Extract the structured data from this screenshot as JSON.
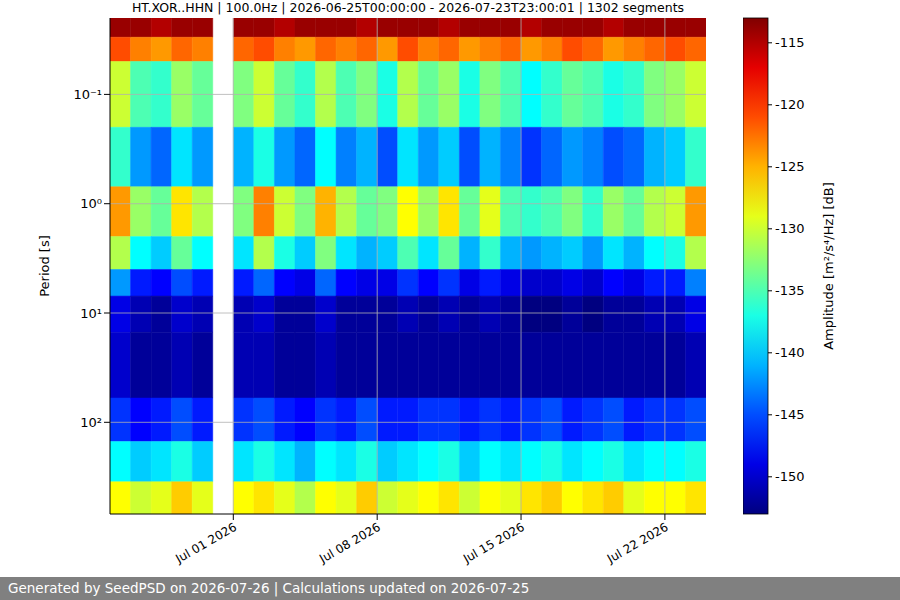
{
  "chart_data": {
    "type": "heatmap",
    "title": "HT.XOR..HHN | 100.0Hz | 2026-06-25T00:00:00 - 2026-07-23T23:00:01 | 1302 segments",
    "footer": "Generated by SeedPSD on 2026-07-26 | Calculations updated on 2026-07-25",
    "y_label": "Period [s]",
    "log": "y",
    "grid": true,
    "xlim": [
      "2026-06-25",
      "2026-07-24"
    ],
    "xticks": [
      {
        "value": "2026-07-01",
        "label": "Jul 01 2026"
      },
      {
        "value": "2026-07-08",
        "label": "Jul 08 2026"
      },
      {
        "value": "2026-07-15",
        "label": "Jul 15 2026"
      },
      {
        "value": "2026-07-22",
        "label": "Jul 22 2026"
      }
    ],
    "ylim": [
      0.02,
      690
    ],
    "yticks": [
      {
        "value": 0.1,
        "label": "10⁻¹"
      },
      {
        "value": 1,
        "label": "10⁰"
      },
      {
        "value": 10,
        "label": "10¹"
      },
      {
        "value": 100,
        "label": "10²"
      }
    ],
    "cells": {
      "x_edges": [
        "2026-06-25",
        "2026-06-26",
        "2026-06-27",
        "2026-06-28",
        "2026-06-29",
        "2026-06-30",
        "2026-07-01",
        "2026-07-02",
        "2026-07-03",
        "2026-07-04",
        "2026-07-05",
        "2026-07-06",
        "2026-07-07",
        "2026-07-08",
        "2026-07-09",
        "2026-07-10",
        "2026-07-11",
        "2026-07-12",
        "2026-07-13",
        "2026-07-14",
        "2026-07-15",
        "2026-07-16",
        "2026-07-17",
        "2026-07-18",
        "2026-07-19",
        "2026-07-20",
        "2026-07-21",
        "2026-07-22",
        "2026-07-23",
        "2026-07-24"
      ],
      "y_edges": [
        0.02,
        0.03,
        0.05,
        0.2,
        0.7,
        2,
        4,
        7,
        15,
        60,
        150,
        350,
        690
      ],
      "values": [
        [
          -114,
          -114,
          -115,
          -114,
          -114,
          null,
          -114,
          -114,
          -115,
          -114,
          -114,
          -114,
          -115,
          -114,
          -114,
          -114,
          -115,
          -114,
          -114,
          -114,
          -115,
          -114,
          -114,
          -114,
          -115,
          -114,
          -114,
          -114,
          -114
        ],
        [
          -121,
          -123,
          -124,
          -122,
          -123,
          null,
          -122,
          -121,
          -123,
          -124,
          -122,
          -123,
          -122,
          -124,
          -121,
          -123,
          -122,
          -124,
          -123,
          -122,
          -124,
          -123,
          -121,
          -122,
          -124,
          -123,
          -122,
          -121,
          -122
        ],
        [
          -130,
          -135,
          -136,
          -132,
          -134,
          null,
          -133,
          -130,
          -134,
          -136,
          -131,
          -135,
          -133,
          -137,
          -131,
          -134,
          -132,
          -137,
          -133,
          -135,
          -138,
          -136,
          -134,
          -135,
          -137,
          -136,
          -133,
          -132,
          -130
        ],
        [
          -136,
          -142,
          -144,
          -139,
          -142,
          null,
          -141,
          -137,
          -142,
          -144,
          -138,
          -143,
          -141,
          -145,
          -139,
          -142,
          -140,
          -145,
          -141,
          -143,
          -146,
          -144,
          -142,
          -143,
          -145,
          -144,
          -141,
          -140,
          -136
        ],
        [
          -124,
          -132,
          -134,
          -127,
          -131,
          null,
          -133,
          -123,
          -130,
          -133,
          -125,
          -131,
          -134,
          -133,
          -128,
          -132,
          -127,
          -134,
          -129,
          -135,
          -136,
          -135,
          -133,
          -136,
          -132,
          -134,
          -131,
          -130,
          -124
        ],
        [
          -131,
          -138,
          -140,
          -134,
          -138,
          null,
          -139,
          -131,
          -137,
          -140,
          -133,
          -139,
          -141,
          -140,
          -135,
          -139,
          -134,
          -141,
          -136,
          -141,
          -142,
          -141,
          -140,
          -142,
          -139,
          -141,
          -138,
          -137,
          -131
        ],
        [
          -142,
          -147,
          -148,
          -145,
          -147,
          null,
          -147,
          -144,
          -148,
          -149,
          -144,
          -148,
          -149,
          -149,
          -146,
          -148,
          -146,
          -149,
          -147,
          -149,
          -150,
          -150,
          -149,
          -150,
          -148,
          -149,
          -147,
          -147,
          -143
        ],
        [
          -149,
          -151,
          -152,
          -150,
          -151,
          null,
          -151,
          -150,
          -152,
          -152,
          -150,
          -152,
          -152,
          -152,
          -151,
          -152,
          -151,
          -152,
          -151,
          -152,
          -153,
          -153,
          -152,
          -153,
          -152,
          -152,
          -151,
          -151,
          -149
        ],
        [
          -150,
          -152,
          -152,
          -151,
          -152,
          null,
          -151,
          -151,
          -152,
          -152,
          -151,
          -152,
          -152,
          -152,
          -152,
          -152,
          -152,
          -152,
          -152,
          -152,
          -152,
          -152,
          -152,
          -152,
          -152,
          -152,
          -152,
          -152,
          -151
        ],
        [
          -146,
          -148,
          -147,
          -145,
          -147,
          null,
          -146,
          -145,
          -147,
          -148,
          -146,
          -147,
          -145,
          -147,
          -147,
          -146,
          -146,
          -147,
          -146,
          -147,
          -146,
          -145,
          -147,
          -146,
          -145,
          -147,
          -146,
          -146,
          -145
        ],
        [
          -138,
          -140,
          -139,
          -137,
          -140,
          null,
          -139,
          -137,
          -139,
          -141,
          -138,
          -139,
          -137,
          -140,
          -139,
          -138,
          -137,
          -140,
          -138,
          -139,
          -138,
          -137,
          -139,
          -138,
          -137,
          -139,
          -138,
          -138,
          -137
        ],
        [
          -128,
          -130,
          -129,
          -126,
          -129,
          null,
          -128,
          -127,
          -129,
          -131,
          -128,
          -129,
          -126,
          -130,
          -129,
          -128,
          -127,
          -130,
          -128,
          -129,
          -127,
          -126,
          -128,
          -127,
          -126,
          -129,
          -128,
          -128,
          -127
        ]
      ]
    },
    "colorbar": {
      "label": "Amplitude [m²/s⁴/Hz] [dB]",
      "range": [
        -153,
        -113
      ],
      "ticks": [
        -115,
        -120,
        -125,
        -130,
        -135,
        -140,
        -145,
        -150
      ]
    }
  }
}
